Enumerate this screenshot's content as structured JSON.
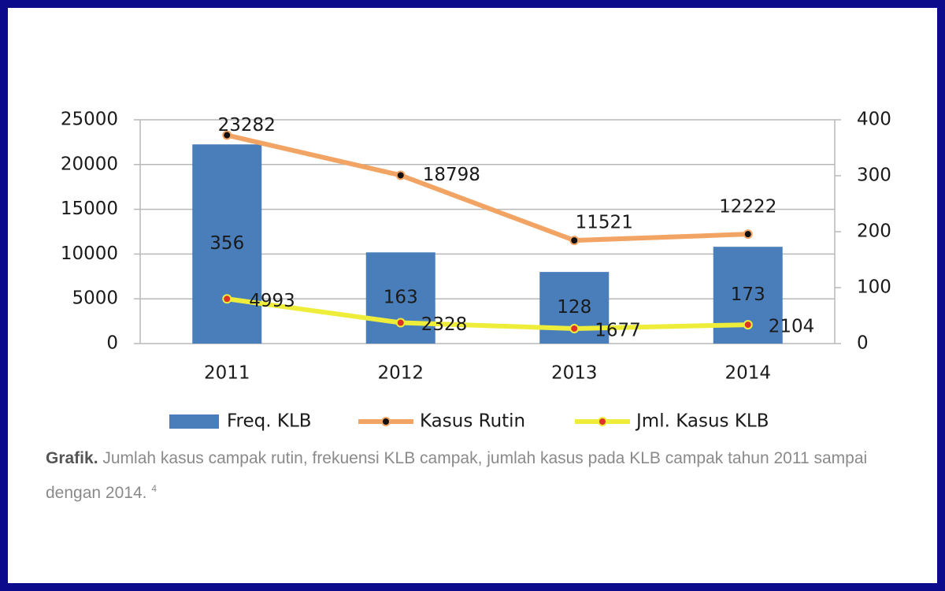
{
  "chart_data": {
    "type": "combo",
    "categories": [
      "2011",
      "2012",
      "2013",
      "2014"
    ],
    "ylim": [
      0,
      25000
    ],
    "yticks": [
      0,
      5000,
      10000,
      15000,
      20000,
      25000
    ],
    "y2lim": [
      0,
      400
    ],
    "y2ticks": [
      0,
      100,
      200,
      300,
      400
    ],
    "grid": true,
    "legend": "bottom",
    "series": [
      {
        "name": "Freq. KLB",
        "type": "bar",
        "axis": "y2",
        "color": "#4a7ebb",
        "values": [
          356,
          163,
          128,
          173
        ]
      },
      {
        "name": "Kasus Rutin",
        "type": "line",
        "color": "#f2a464",
        "marker_color": "#111111",
        "values": [
          23282,
          18798,
          11521,
          12222
        ]
      },
      {
        "name": "Jml. Kasus KLB",
        "type": "line",
        "color": "#eeee3a",
        "marker_color": "#e0302a",
        "values": [
          4993,
          2328,
          1677,
          2104
        ]
      }
    ]
  },
  "caption": {
    "label": "Grafik.",
    "text": "Jumlah kasus campak rutin, frekuensi KLB campak, jumlah kasus pada KLB campak tahun 2011 sampai dengan 2014.",
    "sup": "4"
  }
}
